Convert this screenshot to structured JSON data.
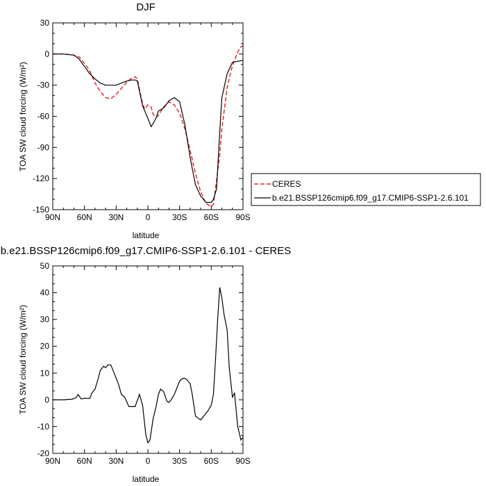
{
  "chart_data": [
    {
      "type": "line",
      "title": "DJF",
      "xlabel": "latitude",
      "ylabel": "TOA SW cloud forcing (W/m²)",
      "xlim": [
        90,
        -90
      ],
      "ylim": [
        -150,
        30
      ],
      "x_ticks": [
        90,
        60,
        30,
        0,
        -30,
        -60,
        -90
      ],
      "x_tick_labels": [
        "90N",
        "60N",
        "30N",
        "0",
        "30S",
        "60S",
        "90S"
      ],
      "y_ticks": [
        30,
        0,
        -30,
        -60,
        -90,
        -120,
        -150
      ],
      "y_tick_labels": [
        "30",
        "0",
        "-30",
        "-60",
        "-90",
        "-120",
        "-150"
      ],
      "legend": {
        "placement": "right"
      },
      "series": [
        {
          "name": "CERES",
          "color": "#e8262d",
          "dash": true,
          "x": [
            90,
            80,
            70,
            65,
            60,
            55,
            50,
            45,
            40,
            35,
            30,
            25,
            20,
            15,
            12,
            10,
            8,
            5,
            3,
            0,
            -3,
            -5,
            -8,
            -10,
            -15,
            -20,
            -25,
            -30,
            -35,
            -40,
            -45,
            -50,
            -55,
            -60,
            -62,
            -65,
            -68,
            -70,
            -75,
            -80,
            -85,
            -88,
            -90
          ],
          "y": [
            0,
            0,
            -1,
            -3,
            -9,
            -16,
            -28,
            -36,
            -42,
            -43,
            -39,
            -33,
            -27,
            -23,
            -22,
            -24,
            -34,
            -48,
            -53,
            -49,
            -51,
            -58,
            -61,
            -59,
            -51,
            -46,
            -49,
            -57,
            -72,
            -93,
            -115,
            -133,
            -144,
            -147,
            -145,
            -122,
            -97,
            -72,
            -32,
            -11,
            2,
            7,
            8
          ]
        },
        {
          "name": "b.e21.BSSP126cmip6.f09_g17.CMIP6-SSP1-2.6.101",
          "color": "#000000",
          "dash": false,
          "x": [
            90,
            80,
            70,
            65,
            60,
            55,
            50,
            45,
            40,
            35,
            30,
            25,
            20,
            15,
            12,
            10,
            5,
            0,
            -3,
            -5,
            -8,
            -10,
            -15,
            -20,
            -25,
            -30,
            -35,
            -40,
            -45,
            -50,
            -55,
            -60,
            -62,
            -65,
            -68,
            -70,
            -75,
            -80,
            -85,
            -90
          ],
          "y": [
            0,
            0,
            -1,
            -5,
            -12,
            -19,
            -24,
            -28,
            -30,
            -30,
            -30,
            -28,
            -26,
            -25,
            -25,
            -26,
            -50,
            -62,
            -70,
            -67,
            -61,
            -55,
            -52,
            -45,
            -42,
            -46,
            -68,
            -100,
            -126,
            -137,
            -143,
            -143,
            -140,
            -130,
            -75,
            -42,
            -19,
            -8,
            -7,
            -6
          ]
        }
      ]
    },
    {
      "type": "line",
      "title": "b.e21.BSSP126cmip6.f09_g17.CMIP6-SSP1-2.6.101 - CERES",
      "xlabel": "latitude",
      "ylabel": "TOA SW cloud forcing (W/m²)",
      "xlim": [
        90,
        -90
      ],
      "ylim": [
        -20,
        50
      ],
      "x_ticks": [
        90,
        60,
        30,
        0,
        -30,
        -60,
        -90
      ],
      "x_tick_labels": [
        "90N",
        "60N",
        "30N",
        "0",
        "30S",
        "60S",
        "90S"
      ],
      "y_ticks": [
        50,
        40,
        30,
        20,
        10,
        0,
        -10,
        -20
      ],
      "y_tick_labels": [
        "50",
        "40",
        "30",
        "20",
        "10",
        "0",
        "-10",
        "-20"
      ],
      "series": [
        {
          "name": "",
          "color": "#000000",
          "dash": false,
          "x": [
            90,
            80,
            72,
            68,
            66,
            63,
            60,
            55,
            53,
            50,
            47,
            45,
            42,
            40,
            38,
            35,
            32,
            28,
            25,
            22,
            18,
            15,
            12,
            8,
            5,
            2,
            0,
            -2,
            -5,
            -8,
            -10,
            -12,
            -15,
            -18,
            -20,
            -22,
            -25,
            -28,
            -30,
            -33,
            -35,
            -37,
            -40,
            -42,
            -45,
            -48,
            -50,
            -53,
            -55,
            -57,
            -60,
            -62,
            -64,
            -66,
            -68,
            -70,
            -72,
            -75,
            -77,
            -80,
            -82,
            -85,
            -88,
            -90
          ],
          "y": [
            0,
            0,
            0.2,
            0.8,
            2,
            0.3,
            0.6,
            0.5,
            2.5,
            4,
            8,
            11,
            12.5,
            12,
            13,
            13,
            10,
            6,
            2,
            1,
            -2.5,
            -2.5,
            -2.5,
            2,
            -2,
            -13,
            -16,
            -15,
            -7,
            -2,
            2,
            4,
            3,
            -0.5,
            -1,
            0,
            2,
            5,
            7,
            8,
            8,
            7.5,
            6,
            2,
            -6,
            -7,
            -7.5,
            -6,
            -5,
            -4,
            -2,
            2,
            15,
            30,
            42,
            38,
            32,
            26,
            12,
            1,
            2.5,
            -10,
            -15,
            -14
          ]
        }
      ]
    }
  ]
}
